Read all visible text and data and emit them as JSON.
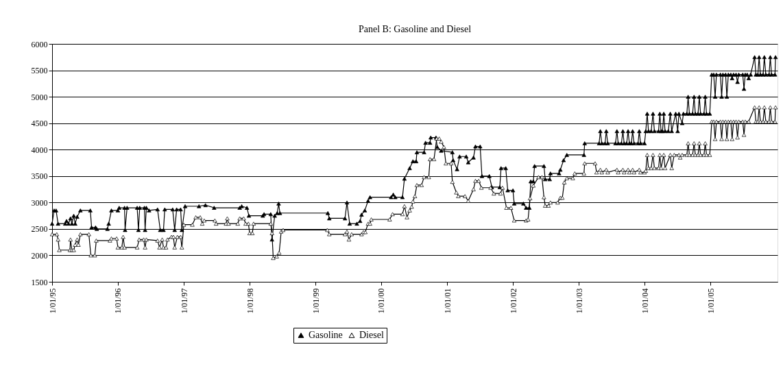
{
  "chart_data": {
    "type": "line",
    "title": "Panel B: Gasoline and Diesel",
    "xlim": [
      "1995-01-01",
      "2006-01-08"
    ],
    "ylim": [
      1500,
      6000
    ],
    "yticks": [
      1500,
      2000,
      2500,
      3000,
      3500,
      4000,
      4500,
      5000,
      5500,
      6000
    ],
    "xticks": [
      {
        "value": "1995-01-01",
        "label": "1/01/95"
      },
      {
        "value": "1996-01-01",
        "label": "1/01/96"
      },
      {
        "value": "1997-01-01",
        "label": "1/01/97"
      },
      {
        "value": "1998-01-01",
        "label": "1/01/98"
      },
      {
        "value": "1999-01-01",
        "label": "1/01/99"
      },
      {
        "value": "2000-01-01",
        "label": "1/01/00"
      },
      {
        "value": "2001-01-01",
        "label": "1/01/01"
      },
      {
        "value": "2002-01-01",
        "label": "1/01/02"
      },
      {
        "value": "2003-01-01",
        "label": "1/01/03"
      },
      {
        "value": "2004-01-01",
        "label": "1/01/04"
      },
      {
        "value": "2005-01-01",
        "label": "1/01/05"
      }
    ],
    "grid": "y",
    "legend": "bottom",
    "marker": "triangle",
    "line_style": "solid",
    "series": [
      {
        "name": "Gasoline",
        "color": "#000000",
        "x": [
          "1995-01-01",
          "1995-01-12",
          "1995-01-23",
          "1995-02-03",
          "1995-03-15",
          "1995-03-22",
          "1995-04-02",
          "1995-04-13",
          "1995-04-21",
          "1995-05-01",
          "1995-05-09",
          "1995-05-20",
          "1995-06-07",
          "1995-08-01",
          "1995-08-08",
          "1995-08-30",
          "1995-09-06",
          "1995-11-04",
          "1995-11-11",
          "1995-11-26",
          "1996-01-01",
          "1996-01-08",
          "1996-02-07",
          "1996-02-10",
          "1996-02-21",
          "1996-04-17",
          "1996-04-24",
          "1996-05-01",
          "1996-05-27",
          "1996-05-31",
          "1996-06-07",
          "1996-06-22",
          "1996-08-08",
          "1996-08-23",
          "1996-09-10",
          "1996-09-17",
          "1996-10-31",
          "1996-11-11",
          "1996-11-22",
          "1996-12-14",
          "1996-12-21",
          "1997-01-08",
          "1997-03-26",
          "1997-05-01",
          "1997-06-18",
          "1997-11-07",
          "1997-11-18",
          "1997-12-17",
          "1997-12-28",
          "1998-03-15",
          "1998-03-22",
          "1998-04-28",
          "1998-05-05",
          "1998-05-20",
          "1998-06-03",
          "1998-06-11",
          "1998-06-18",
          "1999-03-11",
          "1999-03-19",
          "1999-06-14",
          "1999-06-25",
          "1999-07-10",
          "1999-08-19",
          "1999-09-06",
          "1999-09-14",
          "1999-10-02",
          "1999-10-20",
          "1999-10-31",
          "2000-02-25",
          "2000-03-08",
          "2000-03-19",
          "2000-04-28",
          "2000-05-09",
          "2000-06-07",
          "2000-06-25",
          "2000-07-13",
          "2000-07-17",
          "2000-08-26",
          "2000-09-03",
          "2000-09-28",
          "2000-10-02",
          "2000-10-31",
          "2000-11-07",
          "2000-11-29",
          "2001-01-30",
          "2001-02-03",
          "2001-02-25",
          "2001-03-11",
          "2001-04-17",
          "2001-04-28",
          "2001-05-27",
          "2001-06-07",
          "2001-07-03",
          "2001-07-13",
          "2001-08-23",
          "2001-09-06",
          "2001-10-20",
          "2001-10-27",
          "2001-11-22",
          "2001-12-03",
          "2002-01-01",
          "2002-01-08",
          "2002-02-28",
          "2002-03-15",
          "2002-04-02",
          "2002-04-10",
          "2002-04-24",
          "2002-05-01",
          "2002-06-22",
          "2002-06-29",
          "2002-07-24",
          "2002-07-28",
          "2002-09-14",
          "2002-09-21",
          "2002-10-09",
          "2002-10-27",
          "2003-01-30",
          "2003-02-03",
          "2003-04-24",
          "2003-05-01",
          "2003-05-09",
          "2003-05-27",
          "2003-06-03",
          "2003-06-11",
          "2003-07-24",
          "2003-08-01",
          "2003-08-08",
          "2003-08-26",
          "2003-09-03",
          "2003-09-10",
          "2003-09-24",
          "2003-10-02",
          "2003-10-09",
          "2003-10-20",
          "2003-10-27",
          "2003-11-04",
          "2003-11-26",
          "2003-12-03",
          "2003-12-10",
          "2004-01-01",
          "2004-01-08",
          "2004-01-16",
          "2004-01-23",
          "2004-02-07",
          "2004-02-17",
          "2004-02-25",
          "2004-03-19",
          "2004-03-26",
          "2004-04-02",
          "2004-04-10",
          "2004-04-17",
          "2004-04-24",
          "2004-05-12",
          "2004-05-23",
          "2004-05-31",
          "2004-06-22",
          "2004-07-03",
          "2004-07-10",
          "2004-07-28",
          "2004-08-04",
          "2004-08-23",
          "2004-08-30",
          "2004-09-06",
          "2004-09-24",
          "2004-10-02",
          "2004-10-09",
          "2004-10-24",
          "2004-10-31",
          "2004-11-07",
          "2004-11-26",
          "2004-12-03",
          "2004-12-10",
          "2004-12-28",
          "2005-01-08",
          "2005-01-19",
          "2005-01-27",
          "2005-02-03",
          "2005-02-25",
          "2005-03-04",
          "2005-03-11",
          "2005-03-26",
          "2005-04-02",
          "2005-04-10",
          "2005-04-24",
          "2005-05-01",
          "2005-05-09",
          "2005-05-23",
          "2005-05-31",
          "2005-06-07",
          "2005-06-29",
          "2005-07-06",
          "2005-07-13",
          "2005-07-24",
          "2005-08-01",
          "2005-08-12",
          "2005-09-03",
          "2005-09-10",
          "2005-09-21",
          "2005-09-28",
          "2005-10-05",
          "2005-10-20",
          "2005-10-27",
          "2005-11-04",
          "2005-11-22",
          "2005-11-29",
          "2005-12-06",
          "2005-12-25",
          "2005-12-28"
        ],
        "values": [
          2600,
          2850,
          2850,
          2600,
          2600,
          2650,
          2600,
          2700,
          2600,
          2750,
          2600,
          2730,
          2850,
          2850,
          2530,
          2530,
          2500,
          2500,
          2600,
          2850,
          2850,
          2900,
          2900,
          2480,
          2900,
          2900,
          2480,
          2900,
          2900,
          2480,
          2900,
          2850,
          2870,
          2480,
          2480,
          2870,
          2870,
          2480,
          2870,
          2870,
          2480,
          2930,
          2930,
          2950,
          2900,
          2900,
          2930,
          2900,
          2750,
          2750,
          2780,
          2780,
          2300,
          2750,
          2800,
          2980,
          2800,
          2800,
          2700,
          2700,
          3000,
          2600,
          2600,
          2650,
          2770,
          2850,
          3030,
          3100,
          3100,
          3150,
          3100,
          3100,
          3450,
          3650,
          3780,
          3780,
          3950,
          3950,
          4130,
          4130,
          4230,
          4230,
          4050,
          3980,
          3950,
          3800,
          3630,
          3870,
          3870,
          3760,
          3850,
          4060,
          4060,
          3500,
          3500,
          3290,
          3290,
          3650,
          3650,
          3230,
          3230,
          2980,
          2980,
          2900,
          2900,
          3400,
          3400,
          3690,
          3690,
          3440,
          3440,
          3550,
          3550,
          3620,
          3800,
          3900,
          3900,
          4120,
          4120,
          4350,
          4120,
          4120,
          4350,
          4120,
          4120,
          4350,
          4120,
          4120,
          4350,
          4120,
          4120,
          4350,
          4120,
          4120,
          4350,
          4120,
          4120,
          4350,
          4120,
          4120,
          4350,
          4680,
          4350,
          4350,
          4680,
          4350,
          4350,
          4680,
          4350,
          4350,
          4680,
          4350,
          4350,
          4680,
          4350,
          4680,
          4350,
          4680,
          4500,
          4680,
          4680,
          5000,
          4680,
          4680,
          5000,
          4680,
          4680,
          5000,
          4680,
          4680,
          5000,
          4680,
          4680,
          5420,
          5420,
          5000,
          5420,
          5420,
          5000,
          5420,
          5420,
          5000,
          5420,
          5420,
          5350,
          5420,
          5420,
          5280,
          5420,
          5420,
          5150,
          5420,
          5420,
          5350,
          5420,
          5750,
          5420,
          5420,
          5750,
          5420,
          5420,
          5750,
          5420,
          5420,
          5750,
          5420,
          5420,
          5750
        ]
      },
      {
        "name": "Diesel",
        "color": "#ffffff",
        "x": [
          "1995-01-01",
          "1995-01-27",
          "1995-02-03",
          "1995-02-10",
          "1995-04-10",
          "1995-04-13",
          "1995-04-21",
          "1995-05-01",
          "1995-05-09",
          "1995-05-20",
          "1995-05-27",
          "1995-06-07",
          "1995-07-24",
          "1995-08-04",
          "1995-08-26",
          "1995-09-03",
          "1995-11-18",
          "1995-11-26",
          "1995-12-25",
          "1996-01-01",
          "1996-01-23",
          "1996-01-30",
          "1996-02-07",
          "1996-04-17",
          "1996-04-28",
          "1996-05-23",
          "1996-05-31",
          "1996-06-07",
          "1996-08-08",
          "1996-08-19",
          "1996-09-03",
          "1996-09-10",
          "1996-09-24",
          "1996-10-02",
          "1996-10-24",
          "1996-11-04",
          "1996-11-11",
          "1996-11-26",
          "1996-12-14",
          "1996-12-21",
          "1997-01-01",
          "1997-02-17",
          "1997-03-08",
          "1997-04-02",
          "1997-04-13",
          "1997-04-24",
          "1997-06-22",
          "1997-06-29",
          "1997-08-23",
          "1997-08-30",
          "1997-09-06",
          "1997-10-27",
          "1997-11-07",
          "1997-11-29",
          "1997-12-10",
          "1997-12-25",
          "1998-01-01",
          "1998-01-16",
          "1998-01-23",
          "1998-04-28",
          "1998-05-05",
          "1998-05-12",
          "1998-05-31",
          "1998-06-14",
          "1998-06-25",
          "1998-07-06",
          "1999-03-08",
          "1999-03-19",
          "1999-06-14",
          "1999-06-25",
          "1999-07-06",
          "1999-07-21",
          "1999-09-14",
          "1999-09-24",
          "1999-10-05",
          "1999-10-20",
          "1999-10-31",
          "1999-11-07",
          "2000-02-17",
          "2000-03-04",
          "2000-04-28",
          "2000-05-09",
          "2000-05-23",
          "2000-06-07",
          "2000-06-18",
          "2000-06-25",
          "2000-07-06",
          "2000-07-17",
          "2000-08-12",
          "2000-08-26",
          "2000-09-21",
          "2000-09-28",
          "2000-10-20",
          "2000-11-04",
          "2000-11-18",
          "2000-11-29",
          "2000-12-14",
          "2000-12-25",
          "2001-01-23",
          "2001-01-30",
          "2001-02-21",
          "2001-03-04",
          "2001-04-10",
          "2001-04-28",
          "2001-05-27",
          "2001-06-07",
          "2001-06-25",
          "2001-07-10",
          "2001-08-30",
          "2001-09-17",
          "2001-10-24",
          "2001-11-04",
          "2001-11-26",
          "2001-12-21",
          "2002-01-08",
          "2002-03-15",
          "2002-03-26",
          "2002-04-06",
          "2002-04-24",
          "2002-05-23",
          "2002-06-11",
          "2002-06-22",
          "2002-06-29",
          "2002-07-17",
          "2002-07-28",
          "2002-09-06",
          "2002-09-21",
          "2002-10-02",
          "2002-10-13",
          "2002-10-27",
          "2002-11-29",
          "2002-12-10",
          "2003-01-30",
          "2003-02-03",
          "2003-04-02",
          "2003-04-10",
          "2003-05-01",
          "2003-05-09",
          "2003-06-03",
          "2003-06-11",
          "2003-08-01",
          "2003-08-08",
          "2003-09-03",
          "2003-09-10",
          "2003-10-02",
          "2003-10-09",
          "2003-10-27",
          "2003-11-04",
          "2003-12-03",
          "2003-12-10",
          "2004-01-01",
          "2004-01-08",
          "2004-01-16",
          "2004-01-23",
          "2004-02-07",
          "2004-02-17",
          "2004-02-25",
          "2004-03-19",
          "2004-03-26",
          "2004-04-02",
          "2004-04-17",
          "2004-04-24",
          "2004-05-23",
          "2004-05-31",
          "2004-06-14",
          "2004-07-10",
          "2004-07-17",
          "2004-07-28",
          "2004-08-23",
          "2004-08-30",
          "2004-09-06",
          "2004-09-24",
          "2004-10-02",
          "2004-10-09",
          "2004-10-24",
          "2004-10-31",
          "2004-11-07",
          "2004-11-26",
          "2004-12-03",
          "2004-12-10",
          "2004-12-28",
          "2005-01-08",
          "2005-01-19",
          "2005-01-27",
          "2005-02-03",
          "2005-02-25",
          "2005-03-04",
          "2005-03-11",
          "2005-03-26",
          "2005-04-02",
          "2005-04-10",
          "2005-04-24",
          "2005-05-01",
          "2005-05-09",
          "2005-05-23",
          "2005-05-31",
          "2005-06-07",
          "2005-06-29",
          "2005-07-06",
          "2005-07-13",
          "2005-08-01",
          "2005-09-03",
          "2005-09-10",
          "2005-09-21",
          "2005-09-28",
          "2005-10-05",
          "2005-10-20",
          "2005-10-27",
          "2005-11-04",
          "2005-11-22",
          "2005-11-29",
          "2005-12-06",
          "2005-12-25",
          "2005-12-28"
        ],
        "values": [
          2400,
          2400,
          2300,
          2100,
          2100,
          2300,
          2100,
          2100,
          2200,
          2300,
          2200,
          2400,
          2400,
          2000,
          2000,
          2280,
          2280,
          2320,
          2320,
          2150,
          2150,
          2350,
          2150,
          2150,
          2300,
          2300,
          2150,
          2300,
          2280,
          2150,
          2300,
          2150,
          2150,
          2300,
          2350,
          2350,
          2150,
          2350,
          2350,
          2150,
          2580,
          2580,
          2720,
          2720,
          2600,
          2660,
          2660,
          2600,
          2600,
          2700,
          2600,
          2600,
          2700,
          2700,
          2600,
          2600,
          2420,
          2420,
          2600,
          2600,
          2420,
          1950,
          1980,
          2050,
          2450,
          2480,
          2480,
          2400,
          2400,
          2450,
          2300,
          2400,
          2400,
          2440,
          2440,
          2600,
          2600,
          2680,
          2680,
          2780,
          2780,
          2930,
          2720,
          2850,
          2920,
          3020,
          3120,
          3330,
          3330,
          3480,
          3480,
          3820,
          3820,
          4210,
          4210,
          4150,
          4050,
          3740,
          3740,
          3390,
          3190,
          3120,
          3120,
          3030,
          3250,
          3410,
          3410,
          3280,
          3280,
          3170,
          3170,
          3280,
          2900,
          2900,
          2660,
          2660,
          2680,
          3080,
          3320,
          3480,
          3480,
          3100,
          2940,
          2940,
          3000,
          3000,
          3090,
          3090,
          3380,
          3460,
          3460,
          3550,
          3550,
          3740,
          3740,
          3570,
          3620,
          3570,
          3620,
          3570,
          3620,
          3570,
          3620,
          3570,
          3620,
          3570,
          3620,
          3570,
          3620,
          3570,
          3570,
          3600,
          3900,
          3650,
          3650,
          3900,
          3650,
          3650,
          3900,
          3650,
          3900,
          3650,
          3900,
          3650,
          3900,
          3900,
          3850,
          3900,
          3900,
          4120,
          3900,
          3900,
          4120,
          3900,
          3900,
          4120,
          3900,
          3900,
          4120,
          3900,
          3900,
          4530,
          4530,
          4200,
          4530,
          4530,
          4200,
          4530,
          4530,
          4200,
          4530,
          4530,
          4200,
          4530,
          4530,
          4230,
          4530,
          4530,
          4280,
          4530,
          4530,
          4800,
          4530,
          4530,
          4800,
          4530,
          4530,
          4800,
          4530,
          4530,
          4800,
          4530,
          4530,
          4800
        ]
      }
    ]
  }
}
